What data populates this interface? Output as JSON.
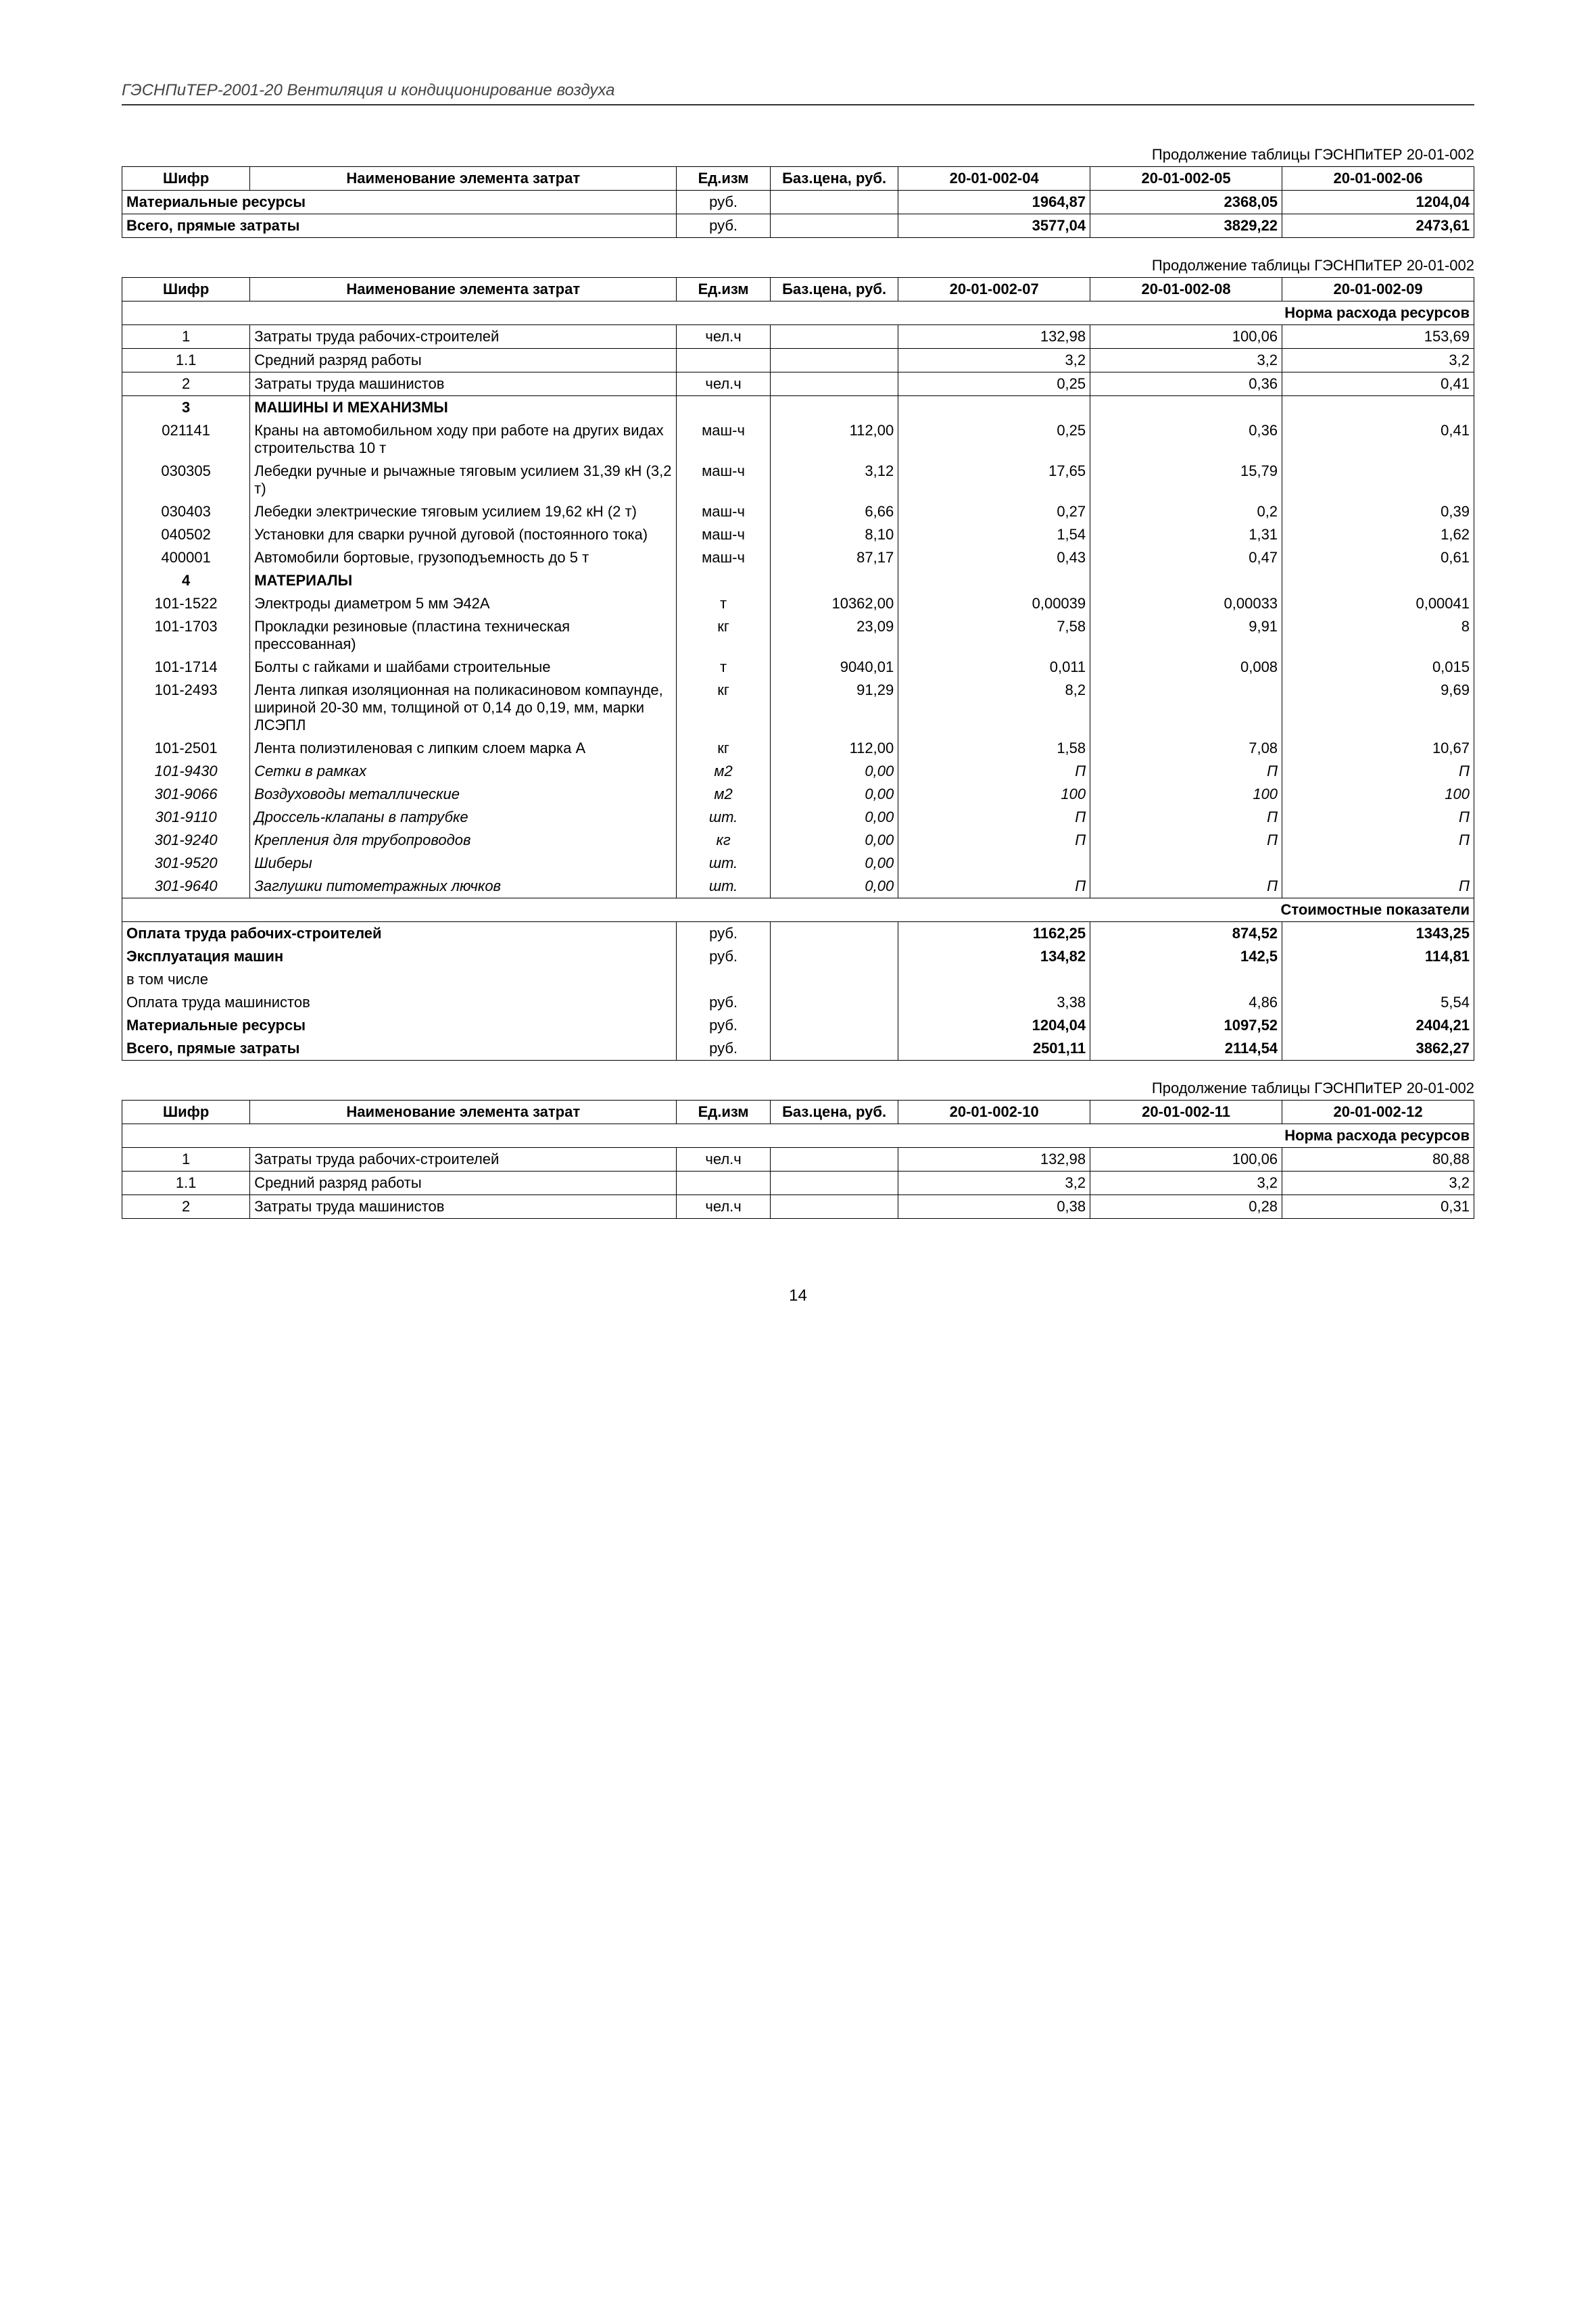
{
  "header": "ГЭСНПиТЕР-2001-20 Вентиляция и кондиционирование воздуха",
  "page_number": "14",
  "col_labels": {
    "shifr": "Шифр",
    "name": "Наименование элемента затрат",
    "unit": "Ед.изм",
    "price": "Баз.цена, руб."
  },
  "units": {
    "rub": "руб.",
    "chelh": "чел.ч",
    "mashh": "маш-ч",
    "t": "т",
    "kg": "кг",
    "m2": "м2",
    "sht": "шт."
  },
  "section_labels": {
    "norma": "Норма расхода ресурсов",
    "stoim": "Стоимостные показатели",
    "mashiny": "МАШИНЫ И МЕХАНИЗМЫ",
    "materialy": "МАТЕРИАЛЫ"
  },
  "row_labels": {
    "zatr_rab": "Затраты труда рабочих-строителей",
    "sred_razr": "Средний разряд работы",
    "zatr_mash": "Затраты труда машинистов",
    "oplata_rab": "Оплата труда рабочих-строителей",
    "ekspl": "Эксплуатация машин",
    "vtom": "в том числе",
    "oplata_mash": "Оплата труда машинистов",
    "mat_res": "Материальные ресурсы",
    "vsego": "Всего, прямые затраты"
  },
  "table1": {
    "cont": "Продолжение таблицы ГЭСНПиТЕР 20-01-002",
    "cols": [
      "20-01-002-04",
      "20-01-002-05",
      "20-01-002-06"
    ],
    "rows": [
      {
        "label": "mat_res",
        "v": [
          "1964,87",
          "2368,05",
          "1204,04"
        ]
      },
      {
        "label": "vsego",
        "v": [
          "3577,04",
          "3829,22",
          "2473,61"
        ]
      }
    ]
  },
  "table2": {
    "cont": "Продолжение таблицы ГЭСНПиТЕР 20-01-002",
    "cols": [
      "20-01-002-07",
      "20-01-002-08",
      "20-01-002-09"
    ],
    "norma_rows": [
      {
        "n": "1",
        "name": "zatr_rab",
        "unit": "chelh",
        "price": "",
        "v": [
          "132,98",
          "100,06",
          "153,69"
        ]
      },
      {
        "n": "1.1",
        "name": "sred_razr",
        "unit": "",
        "price": "",
        "v": [
          "3,2",
          "3,2",
          "3,2"
        ]
      },
      {
        "n": "2",
        "name": "zatr_mash",
        "unit": "chelh",
        "price": "",
        "v": [
          "0,25",
          "0,36",
          "0,41"
        ]
      }
    ],
    "mashiny_rows": [
      {
        "n": "021141",
        "name": "Краны на автомобильном ходу при работе на других видах строительства 10 т",
        "unit": "mashh",
        "price": "112,00",
        "v": [
          "0,25",
          "0,36",
          "0,41"
        ]
      },
      {
        "n": "030305",
        "name": "Лебедки ручные и рычажные тяговым усилием 31,39 кН (3,2 т)",
        "unit": "mashh",
        "price": "3,12",
        "v": [
          "17,65",
          "15,79",
          ""
        ]
      },
      {
        "n": "030403",
        "name": "Лебедки электрические тяговым усилием 19,62 кН (2 т)",
        "unit": "mashh",
        "price": "6,66",
        "v": [
          "0,27",
          "0,2",
          "0,39"
        ]
      },
      {
        "n": "040502",
        "name": "Установки для сварки ручной дуговой (постоянного тока)",
        "unit": "mashh",
        "price": "8,10",
        "v": [
          "1,54",
          "1,31",
          "1,62"
        ]
      },
      {
        "n": "400001",
        "name": "Автомобили бортовые, грузоподъемность до 5 т",
        "unit": "mashh",
        "price": "87,17",
        "v": [
          "0,43",
          "0,47",
          "0,61"
        ]
      }
    ],
    "materialy_rows": [
      {
        "n": "101-1522",
        "name": "Электроды диаметром 5 мм Э42А",
        "unit": "t",
        "price": "10362,00",
        "v": [
          "0,00039",
          "0,00033",
          "0,00041"
        ],
        "italic": false
      },
      {
        "n": "101-1703",
        "name": "Прокладки резиновые (пластина техническая прессованная)",
        "unit": "kg",
        "price": "23,09",
        "v": [
          "7,58",
          "9,91",
          "8"
        ],
        "italic": false
      },
      {
        "n": "101-1714",
        "name": "Болты с гайками и шайбами строительные",
        "unit": "t",
        "price": "9040,01",
        "v": [
          "0,011",
          "0,008",
          "0,015"
        ],
        "italic": false
      },
      {
        "n": "101-2493",
        "name": "Лента липкая изоляционная на поликасиновом компаунде, шириной 20-30 мм, толщиной от 0,14 до 0,19, мм, марки ЛСЭПЛ",
        "unit": "kg",
        "price": "91,29",
        "v": [
          "8,2",
          "",
          "9,69"
        ],
        "italic": false
      },
      {
        "n": "101-2501",
        "name": "Лента полиэтиленовая с липким слоем марка А",
        "unit": "kg",
        "price": "112,00",
        "v": [
          "1,58",
          "7,08",
          "10,67"
        ],
        "italic": false
      },
      {
        "n": "101-9430",
        "name": "Сетки в рамках",
        "unit": "m2",
        "price": "0,00",
        "v": [
          "П",
          "П",
          "П"
        ],
        "italic": true
      },
      {
        "n": "301-9066",
        "name": "Воздуховоды металлические",
        "unit": "m2",
        "price": "0,00",
        "v": [
          "100",
          "100",
          "100"
        ],
        "italic": true
      },
      {
        "n": "301-9110",
        "name": "Дроссель-клапаны в патрубке",
        "unit": "sht",
        "price": "0,00",
        "v": [
          "П",
          "П",
          "П"
        ],
        "italic": true
      },
      {
        "n": "301-9240",
        "name": "Крепления для трубопроводов",
        "unit": "kg",
        "price": "0,00",
        "v": [
          "П",
          "П",
          "П"
        ],
        "italic": true
      },
      {
        "n": "301-9520",
        "name": "Шиберы",
        "unit": "sht",
        "price": "0,00",
        "v": [
          "",
          "",
          ""
        ],
        "italic": true
      },
      {
        "n": "301-9640",
        "name": "Заглушки питометражных лючков",
        "unit": "sht",
        "price": "0,00",
        "v": [
          "П",
          "П",
          "П"
        ],
        "italic": true
      }
    ],
    "stoim_rows": [
      {
        "label": "oplata_rab",
        "unit": "rub",
        "bold": true,
        "v": [
          "1162,25",
          "874,52",
          "1343,25"
        ]
      },
      {
        "label": "ekspl",
        "unit": "rub",
        "bold": true,
        "v": [
          "134,82",
          "142,5",
          "114,81"
        ]
      },
      {
        "label": "vtom",
        "unit": "",
        "bold": false,
        "v": [
          "",
          "",
          ""
        ]
      },
      {
        "label": "oplata_mash",
        "unit": "rub",
        "bold": false,
        "v": [
          "3,38",
          "4,86",
          "5,54"
        ]
      },
      {
        "label": "mat_res",
        "unit": "rub",
        "bold": true,
        "v": [
          "1204,04",
          "1097,52",
          "2404,21"
        ]
      },
      {
        "label": "vsego",
        "unit": "rub",
        "bold": true,
        "v": [
          "2501,11",
          "2114,54",
          "3862,27"
        ]
      }
    ]
  },
  "table3": {
    "cont": "Продолжение таблицы ГЭСНПиТЕР 20-01-002",
    "cols": [
      "20-01-002-10",
      "20-01-002-11",
      "20-01-002-12"
    ],
    "rows": [
      {
        "n": "1",
        "name": "zatr_rab",
        "unit": "chelh",
        "v": [
          "132,98",
          "100,06",
          "80,88"
        ]
      },
      {
        "n": "1.1",
        "name": "sred_razr",
        "unit": "",
        "v": [
          "3,2",
          "3,2",
          "3,2"
        ]
      },
      {
        "n": "2",
        "name": "zatr_mash",
        "unit": "chelh",
        "v": [
          "0,38",
          "0,28",
          "0,31"
        ]
      }
    ]
  }
}
